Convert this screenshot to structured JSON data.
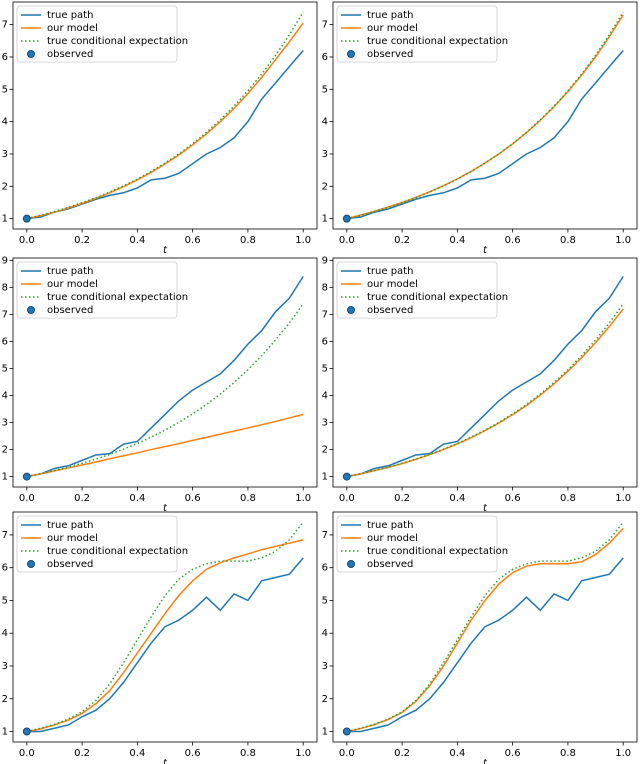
{
  "chart_data": [
    {
      "type": "line",
      "xlabel": "t",
      "legend": "upper left",
      "x": [
        0,
        0.05,
        0.1,
        0.15,
        0.2,
        0.25,
        0.3,
        0.35,
        0.4,
        0.45,
        0.5,
        0.55,
        0.6,
        0.65,
        0.7,
        0.75,
        0.8,
        0.85,
        0.9,
        0.95,
        1
      ],
      "xlim": [
        -0.05,
        1.05
      ],
      "ylim": [
        0.68,
        7.7
      ],
      "xticks": [
        {
          "value": 0,
          "label": "0.0"
        },
        0.2,
        0.4,
        0.6,
        0.8,
        {
          "value": 1,
          "label": "1.0"
        }
      ],
      "yticks": [
        1,
        2,
        3,
        4,
        5,
        6,
        7
      ],
      "series": [
        {
          "name": "true path",
          "color": "#1f77b4",
          "linestyle": "solid",
          "values": [
            1,
            1.05,
            1.2,
            1.3,
            1.45,
            1.6,
            1.72,
            1.8,
            1.95,
            2.2,
            2.25,
            2.4,
            2.7,
            3.0,
            3.2,
            3.5,
            4.0,
            4.7,
            5.2,
            5.7,
            6.2
          ]
        },
        {
          "name": "our model",
          "color": "#ff7f0e",
          "linestyle": "solid",
          "values": [
            1,
            1.09,
            1.2,
            1.33,
            1.47,
            1.63,
            1.8,
            1.99,
            2.2,
            2.43,
            2.69,
            2.97,
            3.28,
            3.62,
            4.0,
            4.41,
            4.87,
            5.37,
            5.92,
            6.47,
            7.05
          ]
        },
        {
          "name": "true conditional expectation",
          "color": "#2ca02c",
          "linestyle": "dotted",
          "values": [
            1,
            1.105,
            1.221,
            1.35,
            1.492,
            1.649,
            1.822,
            2.014,
            2.226,
            2.46,
            2.718,
            3.004,
            3.32,
            3.669,
            4.055,
            4.482,
            4.953,
            5.474,
            6.05,
            6.686,
            7.389
          ]
        },
        {
          "name": "observed",
          "color": "#1f77b4",
          "marker": "o",
          "x": [
            0
          ],
          "values": [
            1
          ]
        }
      ]
    },
    {
      "type": "line",
      "xlabel": "t",
      "legend": "upper left",
      "x": [
        0,
        0.05,
        0.1,
        0.15,
        0.2,
        0.25,
        0.3,
        0.35,
        0.4,
        0.45,
        0.5,
        0.55,
        0.6,
        0.65,
        0.7,
        0.75,
        0.8,
        0.85,
        0.9,
        0.95,
        1
      ],
      "xlim": [
        -0.05,
        1.05
      ],
      "ylim": [
        0.68,
        7.7
      ],
      "xticks": [
        {
          "value": 0,
          "label": "0.0"
        },
        0.2,
        0.4,
        0.6,
        0.8,
        {
          "value": 1,
          "label": "1.0"
        }
      ],
      "yticks": [
        1,
        2,
        3,
        4,
        5,
        6,
        7
      ],
      "series": [
        {
          "name": "true path",
          "color": "#1f77b4",
          "linestyle": "solid",
          "values": [
            1,
            1.05,
            1.2,
            1.3,
            1.45,
            1.6,
            1.72,
            1.8,
            1.95,
            2.2,
            2.25,
            2.4,
            2.7,
            3.0,
            3.2,
            3.5,
            4.0,
            4.7,
            5.2,
            5.7,
            6.2
          ]
        },
        {
          "name": "our model",
          "color": "#ff7f0e",
          "linestyle": "solid",
          "values": [
            1,
            1.11,
            1.23,
            1.36,
            1.5,
            1.66,
            1.83,
            2.02,
            2.23,
            2.46,
            2.72,
            3.0,
            3.31,
            3.66,
            4.04,
            4.46,
            4.93,
            5.44,
            6.0,
            6.63,
            7.3
          ]
        },
        {
          "name": "true conditional expectation",
          "color": "#2ca02c",
          "linestyle": "dotted",
          "values": [
            1,
            1.105,
            1.221,
            1.35,
            1.492,
            1.649,
            1.822,
            2.014,
            2.226,
            2.46,
            2.718,
            3.004,
            3.32,
            3.669,
            4.055,
            4.482,
            4.953,
            5.474,
            6.05,
            6.686,
            7.389
          ]
        },
        {
          "name": "observed",
          "color": "#1f77b4",
          "marker": "o",
          "x": [
            0
          ],
          "values": [
            1
          ]
        }
      ]
    },
    {
      "type": "line",
      "xlabel": "t",
      "legend": "upper left",
      "x": [
        0,
        0.05,
        0.1,
        0.15,
        0.2,
        0.25,
        0.3,
        0.35,
        0.4,
        0.45,
        0.5,
        0.55,
        0.6,
        0.65,
        0.7,
        0.75,
        0.8,
        0.85,
        0.9,
        0.95,
        1
      ],
      "xlim": [
        -0.05,
        1.05
      ],
      "ylim": [
        0.615,
        9.085
      ],
      "xticks": [
        {
          "value": 0,
          "label": "0.0"
        },
        0.2,
        0.4,
        0.6,
        0.8,
        {
          "value": 1,
          "label": "1.0"
        }
      ],
      "yticks": [
        1,
        2,
        3,
        4,
        5,
        6,
        7,
        8,
        9
      ],
      "series": [
        {
          "name": "true path",
          "color": "#1f77b4",
          "linestyle": "solid",
          "values": [
            1,
            1.1,
            1.3,
            1.4,
            1.6,
            1.8,
            1.85,
            2.2,
            2.3,
            2.8,
            3.3,
            3.8,
            4.2,
            4.5,
            4.8,
            5.3,
            5.9,
            6.4,
            7.1,
            7.6,
            8.4
          ]
        },
        {
          "name": "our model",
          "color": "#ff7f0e",
          "linestyle": "solid",
          "values": [
            1,
            1.1,
            1.21,
            1.32,
            1.43,
            1.54,
            1.66,
            1.77,
            1.88,
            2.0,
            2.11,
            2.22,
            2.34,
            2.45,
            2.57,
            2.68,
            2.8,
            2.92,
            3.04,
            3.17,
            3.3
          ]
        },
        {
          "name": "true conditional expectation",
          "color": "#2ca02c",
          "linestyle": "dotted",
          "values": [
            1,
            1.105,
            1.221,
            1.35,
            1.492,
            1.649,
            1.822,
            2.014,
            2.226,
            2.46,
            2.718,
            3.004,
            3.32,
            3.669,
            4.055,
            4.482,
            4.953,
            5.474,
            6.05,
            6.686,
            7.389
          ]
        },
        {
          "name": "observed",
          "color": "#1f77b4",
          "marker": "o",
          "x": [
            0
          ],
          "values": [
            1
          ]
        }
      ]
    },
    {
      "type": "line",
      "xlabel": "t",
      "legend": "upper left",
      "x": [
        0,
        0.05,
        0.1,
        0.15,
        0.2,
        0.25,
        0.3,
        0.35,
        0.4,
        0.45,
        0.5,
        0.55,
        0.6,
        0.65,
        0.7,
        0.75,
        0.8,
        0.85,
        0.9,
        0.95,
        1
      ],
      "xlim": [
        -0.05,
        1.05
      ],
      "ylim": [
        0.615,
        9.085
      ],
      "xticks": [
        {
          "value": 0,
          "label": "0.0"
        },
        0.2,
        0.4,
        0.6,
        0.8,
        {
          "value": 1,
          "label": "1.0"
        }
      ],
      "yticks": [
        1,
        2,
        3,
        4,
        5,
        6,
        7,
        8,
        9
      ],
      "series": [
        {
          "name": "true path",
          "color": "#1f77b4",
          "linestyle": "solid",
          "values": [
            1,
            1.1,
            1.3,
            1.4,
            1.6,
            1.8,
            1.85,
            2.2,
            2.3,
            2.8,
            3.3,
            3.8,
            4.2,
            4.5,
            4.8,
            5.3,
            5.9,
            6.4,
            7.1,
            7.6,
            8.4
          ]
        },
        {
          "name": "our model",
          "color": "#ff7f0e",
          "linestyle": "solid",
          "values": [
            1,
            1.1,
            1.22,
            1.34,
            1.48,
            1.64,
            1.81,
            2.0,
            2.21,
            2.44,
            2.7,
            2.98,
            3.29,
            3.63,
            4.01,
            4.43,
            4.9,
            5.4,
            5.95,
            6.55,
            7.2
          ]
        },
        {
          "name": "true conditional expectation",
          "color": "#2ca02c",
          "linestyle": "dotted",
          "values": [
            1,
            1.105,
            1.221,
            1.35,
            1.492,
            1.649,
            1.822,
            2.014,
            2.226,
            2.46,
            2.718,
            3.004,
            3.32,
            3.669,
            4.055,
            4.482,
            4.953,
            5.474,
            6.05,
            6.686,
            7.389
          ]
        },
        {
          "name": "observed",
          "color": "#1f77b4",
          "marker": "o",
          "x": [
            0
          ],
          "values": [
            1
          ]
        }
      ]
    },
    {
      "type": "line",
      "xlabel": "t",
      "legend": "upper left",
      "x": [
        0,
        0.05,
        0.1,
        0.15,
        0.2,
        0.25,
        0.3,
        0.35,
        0.4,
        0.45,
        0.5,
        0.55,
        0.6,
        0.65,
        0.7,
        0.75,
        0.8,
        0.85,
        0.9,
        0.95,
        1
      ],
      "xlim": [
        -0.05,
        1.05
      ],
      "ylim": [
        0.68,
        7.7
      ],
      "xticks": [
        {
          "value": 0,
          "label": "0.0"
        },
        0.2,
        0.4,
        0.6,
        0.8,
        {
          "value": 1,
          "label": "1.0"
        }
      ],
      "yticks": [
        1,
        2,
        3,
        4,
        5,
        6,
        7
      ],
      "series": [
        {
          "name": "true path",
          "color": "#1f77b4",
          "linestyle": "solid",
          "values": [
            1,
            1.0,
            1.1,
            1.2,
            1.45,
            1.65,
            2.0,
            2.5,
            3.1,
            3.7,
            4.2,
            4.4,
            4.7,
            5.1,
            4.7,
            5.2,
            5.0,
            5.6,
            5.7,
            5.8,
            6.3
          ]
        },
        {
          "name": "our model",
          "color": "#ff7f0e",
          "linestyle": "solid",
          "values": [
            1,
            1.08,
            1.2,
            1.35,
            1.55,
            1.85,
            2.25,
            2.8,
            3.4,
            4.0,
            4.6,
            5.15,
            5.6,
            5.95,
            6.15,
            6.3,
            6.42,
            6.55,
            6.65,
            6.75,
            6.85
          ]
        },
        {
          "name": "true conditional expectation",
          "color": "#2ca02c",
          "linestyle": "dotted",
          "values": [
            1,
            1.1,
            1.22,
            1.38,
            1.6,
            1.95,
            2.45,
            3.1,
            3.8,
            4.5,
            5.15,
            5.65,
            5.95,
            6.12,
            6.2,
            6.2,
            6.2,
            6.3,
            6.5,
            6.85,
            7.4
          ]
        },
        {
          "name": "observed",
          "color": "#1f77b4",
          "marker": "o",
          "x": [
            0
          ],
          "values": [
            1
          ]
        }
      ]
    },
    {
      "type": "line",
      "xlabel": "t",
      "legend": "upper left",
      "x": [
        0,
        0.05,
        0.1,
        0.15,
        0.2,
        0.25,
        0.3,
        0.35,
        0.4,
        0.45,
        0.5,
        0.55,
        0.6,
        0.65,
        0.7,
        0.75,
        0.8,
        0.85,
        0.9,
        0.95,
        1
      ],
      "xlim": [
        -0.05,
        1.05
      ],
      "ylim": [
        0.68,
        7.7
      ],
      "xticks": [
        {
          "value": 0,
          "label": "0.0"
        },
        0.2,
        0.4,
        0.6,
        0.8,
        {
          "value": 1,
          "label": "1.0"
        }
      ],
      "yticks": [
        1,
        2,
        3,
        4,
        5,
        6,
        7
      ],
      "series": [
        {
          "name": "true path",
          "color": "#1f77b4",
          "linestyle": "solid",
          "values": [
            1,
            1.0,
            1.1,
            1.2,
            1.45,
            1.65,
            2.0,
            2.5,
            3.1,
            3.7,
            4.2,
            4.4,
            4.7,
            5.1,
            4.7,
            5.2,
            5.0,
            5.6,
            5.7,
            5.8,
            6.3
          ]
        },
        {
          "name": "our model",
          "color": "#ff7f0e",
          "linestyle": "solid",
          "values": [
            1,
            1.09,
            1.21,
            1.37,
            1.58,
            1.92,
            2.4,
            3.0,
            3.7,
            4.4,
            5.0,
            5.5,
            5.85,
            6.05,
            6.12,
            6.12,
            6.12,
            6.18,
            6.4,
            6.75,
            7.2
          ]
        },
        {
          "name": "true conditional expectation",
          "color": "#2ca02c",
          "linestyle": "dotted",
          "values": [
            1,
            1.1,
            1.22,
            1.38,
            1.6,
            1.95,
            2.45,
            3.1,
            3.8,
            4.5,
            5.15,
            5.65,
            5.95,
            6.12,
            6.2,
            6.2,
            6.2,
            6.3,
            6.5,
            6.85,
            7.4
          ]
        },
        {
          "name": "observed",
          "color": "#1f77b4",
          "marker": "o",
          "x": [
            0
          ],
          "values": [
            1
          ]
        }
      ]
    }
  ]
}
